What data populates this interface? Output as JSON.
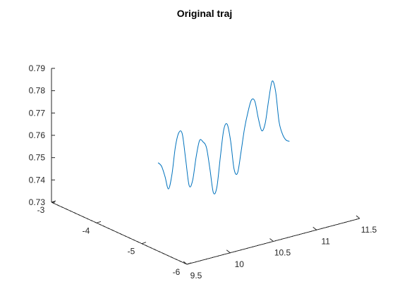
{
  "chart_data": {
    "type": "line",
    "title": "Original traj",
    "xlabel": "",
    "ylabel": "",
    "zlabel": "",
    "grid": false,
    "xlim": [
      9.5,
      11.5
    ],
    "ylim": [
      -6,
      -3
    ],
    "zlim": [
      0.73,
      0.79
    ],
    "xticks": [
      "9.5",
      "10",
      "10.5",
      "11",
      "11.5"
    ],
    "yticks": [
      "-3",
      "-4",
      "-5",
      "-6"
    ],
    "zticks": [
      "0.73",
      "0.74",
      "0.75",
      "0.76",
      "0.77",
      "0.78",
      "0.79"
    ],
    "series": [
      {
        "color": "#0072bd",
        "x": [
          9.95,
          9.99,
          10.03,
          10.07,
          10.11,
          10.15,
          10.19,
          10.23,
          10.27,
          10.31,
          10.35,
          10.39,
          10.43,
          10.47,
          10.51,
          10.55,
          10.59,
          10.63,
          10.67,
          10.71,
          10.75,
          10.79,
          10.83,
          10.87,
          10.91,
          10.95,
          10.99,
          11.03,
          11.07,
          11.11,
          11.15,
          11.19,
          11.23,
          11.27,
          11.31,
          11.35,
          11.39,
          11.43,
          11.47
        ],
        "y": [
          -4.5,
          -4.5,
          -4.5,
          -4.5,
          -4.5,
          -4.5,
          -4.5,
          -4.5,
          -4.5,
          -4.5,
          -4.5,
          -4.5,
          -4.5,
          -4.5,
          -4.5,
          -4.5,
          -4.5,
          -4.5,
          -4.5,
          -4.5,
          -4.5,
          -4.5,
          -4.5,
          -4.5,
          -4.5,
          -4.5,
          -4.5,
          -4.5,
          -4.5,
          -4.5,
          -4.5,
          -4.5,
          -4.5,
          -4.5,
          -4.5,
          -4.5,
          -4.5,
          -4.5,
          -4.5
        ],
        "z": [
          0.757,
          0.755,
          0.75,
          0.744,
          0.75,
          0.762,
          0.768,
          0.767,
          0.755,
          0.743,
          0.745,
          0.755,
          0.762,
          0.761,
          0.758,
          0.748,
          0.737,
          0.739,
          0.752,
          0.764,
          0.766,
          0.758,
          0.745,
          0.743,
          0.752,
          0.762,
          0.769,
          0.774,
          0.773,
          0.765,
          0.759,
          0.762,
          0.772,
          0.78,
          0.775,
          0.761,
          0.755,
          0.752,
          0.751
        ]
      }
    ]
  }
}
